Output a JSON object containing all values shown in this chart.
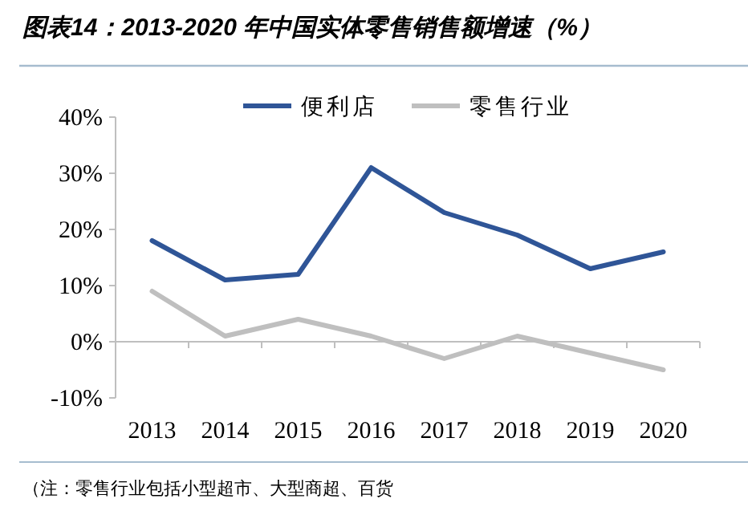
{
  "chart_data": {
    "type": "line",
    "title": "图表14：2013-2020 年中国实体零售销售额增速（%）",
    "categories": [
      "2013",
      "2014",
      "2015",
      "2016",
      "2017",
      "2018",
      "2019",
      "2020"
    ],
    "series": [
      {
        "name": "便利店",
        "color": "#2f5597",
        "values": [
          18,
          11,
          12,
          31,
          23,
          19,
          13,
          16
        ]
      },
      {
        "name": "零售行业",
        "color": "#bfbfbf",
        "values": [
          9,
          1,
          4,
          1,
          -3,
          1,
          -2,
          -5
        ]
      }
    ],
    "ylim": [
      -10,
      40
    ],
    "yticks": [
      {
        "value": -10,
        "label": "-10%"
      },
      {
        "value": 0,
        "label": "0%"
      },
      {
        "value": 10,
        "label": "10%"
      },
      {
        "value": 20,
        "label": "20%"
      },
      {
        "value": 30,
        "label": "30%"
      },
      {
        "value": 40,
        "label": "40%"
      }
    ],
    "legend": "top",
    "marker": "none",
    "line_style": "solid",
    "annotations": [
      "（注：零售行业包括小型超市、大型商超、百货"
    ]
  }
}
